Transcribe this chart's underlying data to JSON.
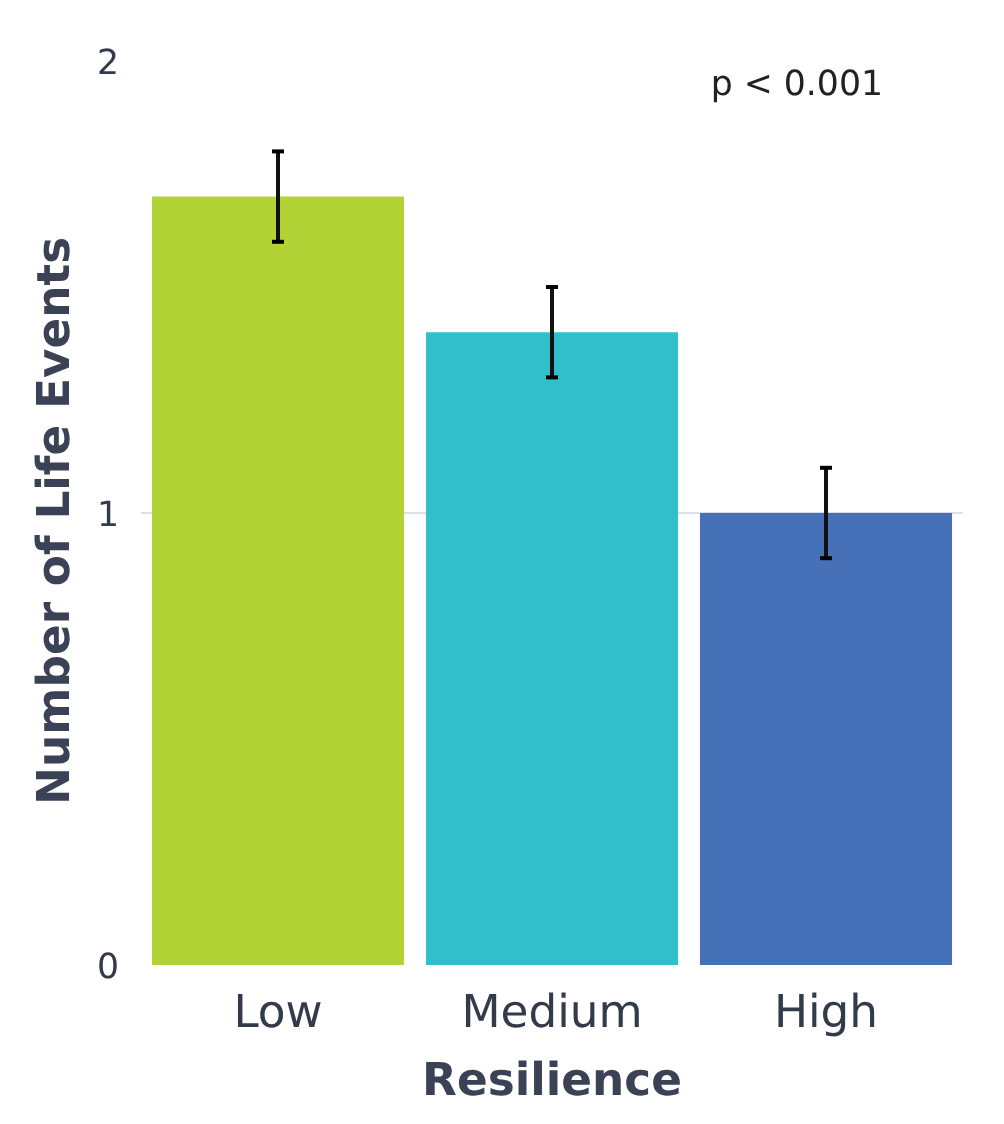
{
  "chart_data": {
    "type": "bar",
    "xlabel": "Resilience",
    "ylabel": "Number of  Life Events",
    "categories": [
      "Low",
      "Medium",
      "High"
    ],
    "values": [
      1.7,
      1.4,
      1.0
    ],
    "colors": [
      "#b2d235",
      "#31bfc9",
      "#4670b8"
    ],
    "errors": [
      0.1,
      0.1,
      0.1
    ],
    "ylim": [
      0,
      2
    ],
    "yticks": [
      0,
      1,
      2
    ],
    "grid": "y",
    "annotations": [
      "p < 0.001"
    ]
  }
}
